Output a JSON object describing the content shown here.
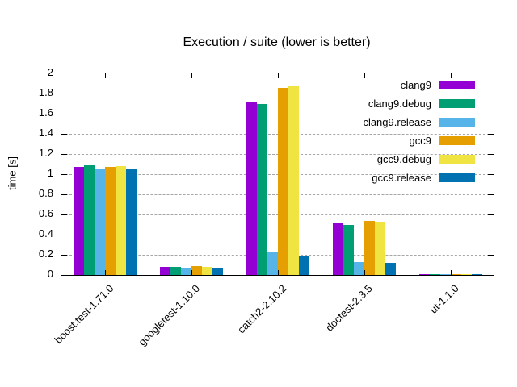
{
  "chart_data": {
    "type": "bar",
    "title": "Execution / suite (lower is better)",
    "xlabel": "",
    "ylabel": "time [s]",
    "ylim": [
      0,
      2
    ],
    "ytick_step": 0.2,
    "ytick_labels": [
      "0",
      "0.2",
      "0.4",
      "0.6",
      "0.8",
      "1",
      "1.2",
      "1.4",
      "1.6",
      "1.8",
      "2"
    ],
    "grid": "horizontal-dashed",
    "legend_position": "top-right-inside",
    "categories": [
      "boost.test-1.71.0",
      "googletest-1.10.0",
      "catch2-2.10.2",
      "doctest-2.3.5",
      "ut-1.1.0"
    ],
    "series": [
      {
        "name": "clang9",
        "color": "#9400d3",
        "values": [
          1.07,
          0.08,
          1.72,
          0.51,
          0.01
        ]
      },
      {
        "name": "clang9.debug",
        "color": "#009e73",
        "values": [
          1.09,
          0.08,
          1.7,
          0.5,
          0.01
        ]
      },
      {
        "name": "clang9.release",
        "color": "#56b4e9",
        "values": [
          1.06,
          0.07,
          0.23,
          0.13,
          0.01
        ]
      },
      {
        "name": "gcc9",
        "color": "#e69f00",
        "values": [
          1.07,
          0.09,
          1.86,
          0.54,
          0.01
        ]
      },
      {
        "name": "gcc9.debug",
        "color": "#f0e442",
        "values": [
          1.08,
          0.08,
          1.87,
          0.53,
          0.01
        ]
      },
      {
        "name": "gcc9.release",
        "color": "#0072b2",
        "values": [
          1.06,
          0.07,
          0.19,
          0.12,
          0.01
        ]
      }
    ]
  }
}
